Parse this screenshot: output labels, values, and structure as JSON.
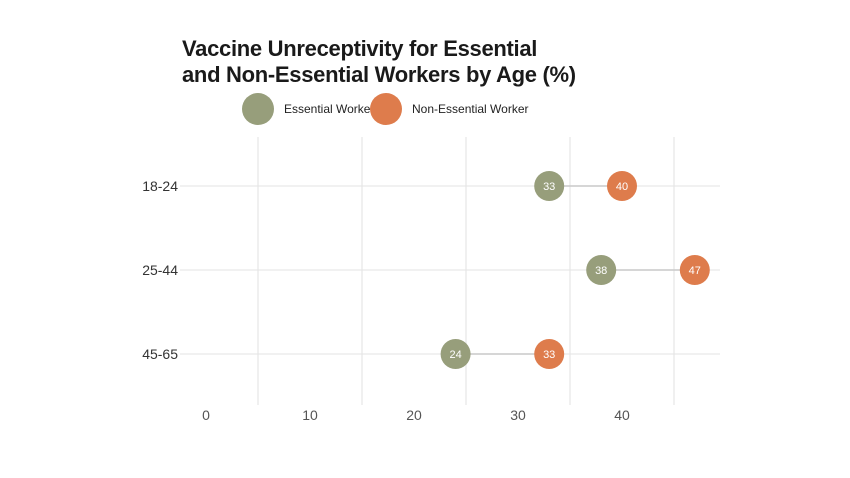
{
  "chart_data": {
    "type": "dumbbell",
    "title_lines": [
      "Vaccine Unreceptivity for Essential",
      "and Non-Essential Workers by Age (%)"
    ],
    "xlabel": "",
    "ylabel": "",
    "xlim": [
      0,
      49
    ],
    "xticks": [
      0,
      10,
      20,
      30,
      40
    ],
    "categories": [
      "18-24",
      "25-44",
      "45-65"
    ],
    "series": [
      {
        "name": "Essential Worker",
        "color": "#979e7b",
        "values": [
          33,
          38,
          24
        ]
      },
      {
        "name": "Non-Essential Worker",
        "color": "#de7c4c",
        "values": [
          40,
          47,
          33
        ]
      }
    ],
    "legend_position": "top",
    "grid": true
  }
}
